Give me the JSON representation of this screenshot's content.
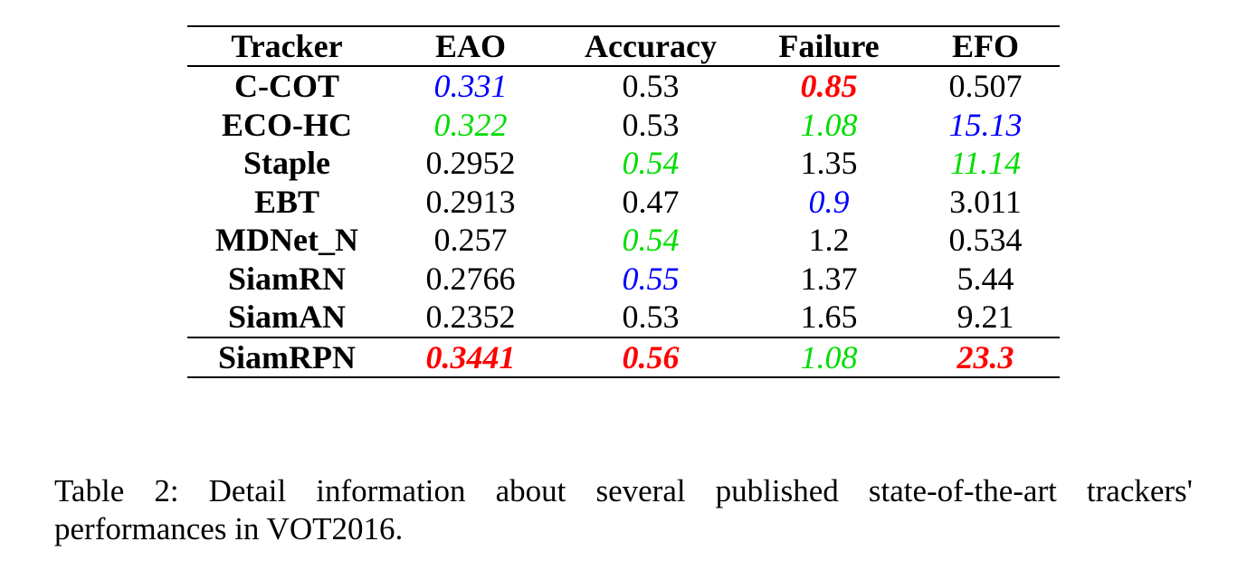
{
  "table": {
    "headers": [
      "Tracker",
      "EAO",
      "Accuracy",
      "Failure",
      "EFO"
    ],
    "rows": [
      {
        "tracker": "C-COT",
        "cells": [
          {
            "value": "0.331",
            "highlight": "second"
          },
          {
            "value": "0.53",
            "highlight": ""
          },
          {
            "value": "0.85",
            "highlight": "first"
          },
          {
            "value": "0.507",
            "highlight": ""
          }
        ]
      },
      {
        "tracker": "ECO-HC",
        "cells": [
          {
            "value": "0.322",
            "highlight": "third"
          },
          {
            "value": "0.53",
            "highlight": ""
          },
          {
            "value": "1.08",
            "highlight": "third"
          },
          {
            "value": "15.13",
            "highlight": "second"
          }
        ]
      },
      {
        "tracker": "Staple",
        "cells": [
          {
            "value": "0.2952",
            "highlight": ""
          },
          {
            "value": "0.54",
            "highlight": "third"
          },
          {
            "value": "1.35",
            "highlight": ""
          },
          {
            "value": "11.14",
            "highlight": "third"
          }
        ]
      },
      {
        "tracker": "EBT",
        "cells": [
          {
            "value": "0.2913",
            "highlight": ""
          },
          {
            "value": "0.47",
            "highlight": ""
          },
          {
            "value": "0.9",
            "highlight": "second"
          },
          {
            "value": "3.011",
            "highlight": ""
          }
        ]
      },
      {
        "tracker": "MDNet_N",
        "cells": [
          {
            "value": "0.257",
            "highlight": ""
          },
          {
            "value": "0.54",
            "highlight": "third"
          },
          {
            "value": "1.2",
            "highlight": ""
          },
          {
            "value": "0.534",
            "highlight": ""
          }
        ]
      },
      {
        "tracker": "SiamRN",
        "cells": [
          {
            "value": "0.2766",
            "highlight": ""
          },
          {
            "value": "0.55",
            "highlight": "second"
          },
          {
            "value": "1.37",
            "highlight": ""
          },
          {
            "value": "5.44",
            "highlight": ""
          }
        ]
      },
      {
        "tracker": "SiamAN",
        "cells": [
          {
            "value": "0.2352",
            "highlight": ""
          },
          {
            "value": "0.53",
            "highlight": ""
          },
          {
            "value": "1.65",
            "highlight": ""
          },
          {
            "value": "9.21",
            "highlight": ""
          }
        ]
      },
      {
        "tracker": "SiamRPN",
        "proposed": true,
        "cells": [
          {
            "value": "0.3441",
            "highlight": "first"
          },
          {
            "value": "0.56",
            "highlight": "first"
          },
          {
            "value": "1.08",
            "highlight": "third"
          },
          {
            "value": "23.3",
            "highlight": "first"
          }
        ]
      }
    ]
  },
  "highlight_colors": {
    "first": "#ff0000",
    "second": "#0000ff",
    "third": "#00dd00"
  },
  "caption": "Table 2: Detail information about several published state-of-the-art trackers' performances in VOT2016."
}
